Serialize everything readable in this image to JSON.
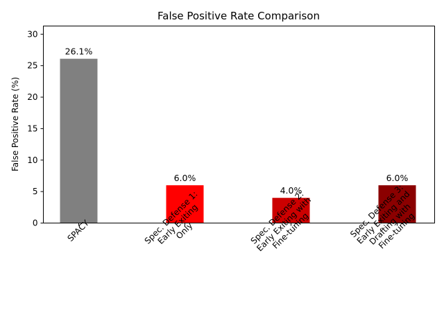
{
  "chart_data": {
    "type": "bar",
    "title": "False Positive Rate Comparison",
    "xlabel": "",
    "ylabel": "False Positive Rate (%)",
    "ylim": [
      0,
      31.3
    ],
    "yticks": [
      0,
      5,
      10,
      15,
      20,
      25,
      30
    ],
    "grid": false,
    "legend": "none",
    "categories": [
      "SPACY",
      "Spec. Defense 1:\nEarly Exiting\nOnly",
      "Spec. Defense 2:\nEarly Exiting with\nFine-tuning",
      "Spec. Defense 3:\nEarly Exiting and\nDrafting with\nFine-tuning"
    ],
    "values": [
      26.1,
      6.0,
      4.0,
      6.0
    ],
    "data_labels": [
      "26.1%",
      "6.0%",
      "4.0%",
      "6.0%"
    ],
    "colors": [
      "#808080",
      "#ff0000",
      "#cc0000",
      "#8b0000"
    ]
  }
}
